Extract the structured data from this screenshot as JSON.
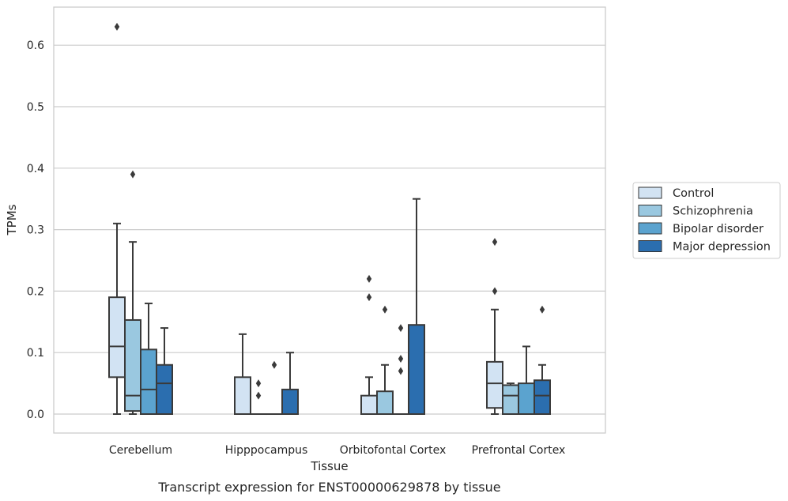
{
  "caption": "Transcript expression for ENST00000629878 by tissue",
  "chart_data": {
    "type": "box",
    "xlabel": "Tissue",
    "ylabel": "TPMs",
    "ylim": [
      -0.03,
      0.66
    ],
    "yticks": [
      0.0,
      0.1,
      0.2,
      0.3,
      0.4,
      0.5,
      0.6
    ],
    "ytick_labels": [
      "0.0",
      "0.1",
      "0.2",
      "0.3",
      "0.4",
      "0.5",
      "0.6"
    ],
    "grid": true,
    "legend_position": "right",
    "categories": [
      "Cerebellum",
      "Hipppocampus",
      "Orbitofontal Cortex",
      "Prefrontal Cortex"
    ],
    "series": [
      {
        "name": "Control",
        "color": "#d2e3f3",
        "boxes": [
          {
            "whislo": 0.0,
            "q1": 0.06,
            "median": 0.11,
            "q3": 0.19,
            "whishi": 0.31,
            "fliers": [
              0.63
            ]
          },
          {
            "whislo": 0.0,
            "q1": 0.0,
            "median": 0.0,
            "q3": 0.06,
            "whishi": 0.13,
            "fliers": []
          },
          {
            "whislo": 0.0,
            "q1": 0.0,
            "median": 0.0,
            "q3": 0.03,
            "whishi": 0.06,
            "fliers": [
              0.19,
              0.22
            ]
          },
          {
            "whislo": 0.0,
            "q1": 0.01,
            "median": 0.05,
            "q3": 0.085,
            "whishi": 0.17,
            "fliers": [
              0.2,
              0.28
            ]
          }
        ]
      },
      {
        "name": "Schizophrenia",
        "color": "#9ac8e0",
        "boxes": [
          {
            "whislo": 0.0,
            "q1": 0.005,
            "median": 0.03,
            "q3": 0.153,
            "whishi": 0.28,
            "fliers": [
              0.39
            ]
          },
          {
            "whislo": 0.0,
            "q1": 0.0,
            "median": 0.0,
            "q3": 0.0,
            "whishi": 0.0,
            "fliers": [
              0.03,
              0.05
            ]
          },
          {
            "whislo": 0.0,
            "q1": 0.0,
            "median": 0.0,
            "q3": 0.037,
            "whishi": 0.08,
            "fliers": [
              0.17
            ]
          },
          {
            "whislo": 0.0,
            "q1": 0.0,
            "median": 0.03,
            "q3": 0.047,
            "whishi": 0.05,
            "fliers": []
          }
        ]
      },
      {
        "name": "Bipolar disorder",
        "color": "#5ba3cf",
        "boxes": [
          {
            "whislo": 0.0,
            "q1": 0.0,
            "median": 0.04,
            "q3": 0.105,
            "whishi": 0.18,
            "fliers": []
          },
          {
            "whislo": 0.0,
            "q1": 0.0,
            "median": 0.0,
            "q3": 0.0,
            "whishi": 0.0,
            "fliers": [
              0.08
            ]
          },
          {
            "whislo": 0.0,
            "q1": 0.0,
            "median": 0.0,
            "q3": 0.0,
            "whishi": 0.0,
            "fliers": [
              0.07,
              0.09,
              0.14
            ]
          },
          {
            "whislo": 0.0,
            "q1": 0.0,
            "median": 0.0,
            "q3": 0.05,
            "whishi": 0.11,
            "fliers": []
          }
        ]
      },
      {
        "name": "Major depression",
        "color": "#2b6eaf",
        "boxes": [
          {
            "whislo": 0.0,
            "q1": 0.0,
            "median": 0.05,
            "q3": 0.08,
            "whishi": 0.14,
            "fliers": []
          },
          {
            "whislo": 0.0,
            "q1": 0.0,
            "median": 0.0,
            "q3": 0.04,
            "whishi": 0.1,
            "fliers": []
          },
          {
            "whislo": 0.0,
            "q1": 0.0,
            "median": 0.0,
            "q3": 0.145,
            "whishi": 0.35,
            "fliers": []
          },
          {
            "whislo": 0.0,
            "q1": 0.0,
            "median": 0.03,
            "q3": 0.055,
            "whishi": 0.08,
            "fliers": [
              0.17
            ]
          }
        ]
      }
    ]
  }
}
